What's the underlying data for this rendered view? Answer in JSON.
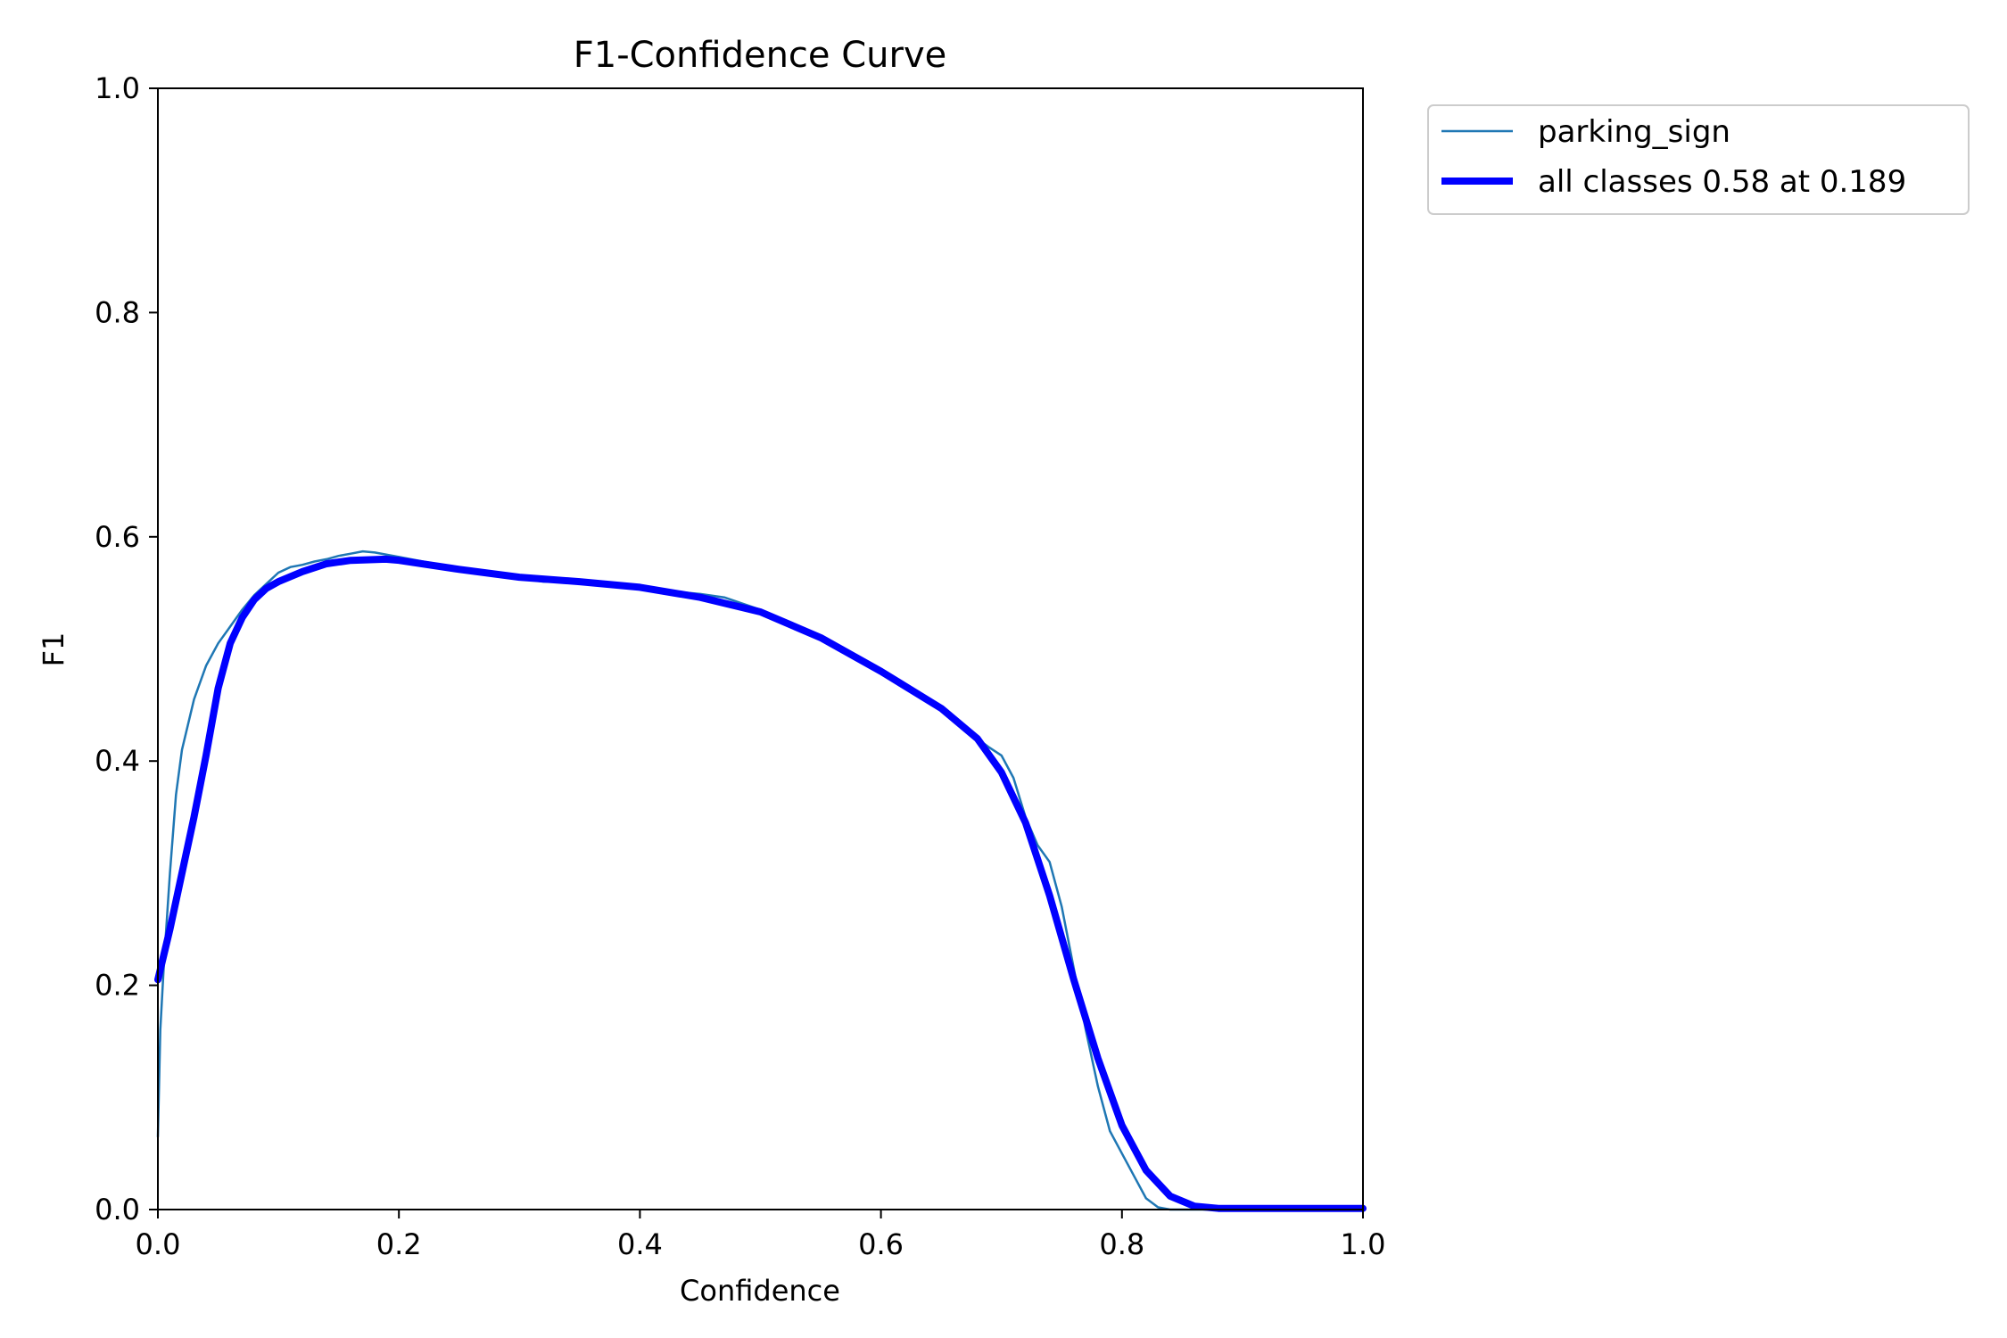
{
  "chart_data": {
    "type": "line",
    "title": "F1-Confidence Curve",
    "xlabel": "Confidence",
    "ylabel": "F1",
    "xlim": [
      0,
      1
    ],
    "ylim": [
      0,
      1
    ],
    "xticks": [
      "0.0",
      "0.2",
      "0.4",
      "0.6",
      "0.8",
      "1.0"
    ],
    "yticks": [
      "0.0",
      "0.2",
      "0.4",
      "0.6",
      "0.8",
      "1.0"
    ],
    "grid": false,
    "legend_position": "outside-top-right",
    "series": [
      {
        "name": "parking_sign",
        "color": "#1f77b4",
        "style": "thin",
        "x": [
          0.0,
          0.002,
          0.005,
          0.01,
          0.015,
          0.02,
          0.03,
          0.04,
          0.05,
          0.06,
          0.07,
          0.08,
          0.09,
          0.1,
          0.11,
          0.12,
          0.13,
          0.14,
          0.15,
          0.16,
          0.17,
          0.18,
          0.19,
          0.2,
          0.22,
          0.25,
          0.28,
          0.3,
          0.32,
          0.35,
          0.4,
          0.43,
          0.45,
          0.47,
          0.5,
          0.55,
          0.6,
          0.65,
          0.67,
          0.69,
          0.7,
          0.71,
          0.72,
          0.73,
          0.74,
          0.75,
          0.76,
          0.77,
          0.78,
          0.79,
          0.8,
          0.81,
          0.82,
          0.83,
          0.84,
          0.85,
          0.9,
          0.95,
          1.0
        ],
        "y": [
          0.065,
          0.16,
          0.22,
          0.3,
          0.37,
          0.41,
          0.455,
          0.485,
          0.505,
          0.52,
          0.535,
          0.548,
          0.558,
          0.568,
          0.573,
          0.575,
          0.578,
          0.58,
          0.583,
          0.585,
          0.587,
          0.586,
          0.584,
          0.582,
          0.578,
          0.572,
          0.566,
          0.563,
          0.56,
          0.56,
          0.556,
          0.551,
          0.549,
          0.546,
          0.535,
          0.51,
          0.478,
          0.445,
          0.428,
          0.412,
          0.405,
          0.385,
          0.35,
          0.325,
          0.31,
          0.27,
          0.215,
          0.16,
          0.11,
          0.07,
          0.05,
          0.03,
          0.01,
          0.002,
          0.0,
          0.0,
          0.0,
          0.0,
          0.0
        ]
      },
      {
        "name": "all classes 0.58 at 0.189",
        "color": "#0000ff",
        "style": "thick",
        "x": [
          0.0,
          0.01,
          0.02,
          0.03,
          0.04,
          0.05,
          0.06,
          0.07,
          0.08,
          0.09,
          0.1,
          0.12,
          0.14,
          0.16,
          0.189,
          0.2,
          0.25,
          0.3,
          0.35,
          0.4,
          0.45,
          0.5,
          0.55,
          0.6,
          0.65,
          0.68,
          0.7,
          0.72,
          0.74,
          0.76,
          0.78,
          0.8,
          0.82,
          0.84,
          0.86,
          0.88,
          0.9,
          0.95,
          1.0
        ],
        "y": [
          0.205,
          0.25,
          0.3,
          0.35,
          0.405,
          0.465,
          0.505,
          0.528,
          0.544,
          0.554,
          0.56,
          0.569,
          0.576,
          0.579,
          0.58,
          0.579,
          0.571,
          0.564,
          0.56,
          0.555,
          0.546,
          0.533,
          0.51,
          0.48,
          0.447,
          0.42,
          0.39,
          0.345,
          0.28,
          0.205,
          0.135,
          0.075,
          0.035,
          0.012,
          0.003,
          0.001,
          0.001,
          0.001,
          0.001
        ]
      }
    ]
  }
}
